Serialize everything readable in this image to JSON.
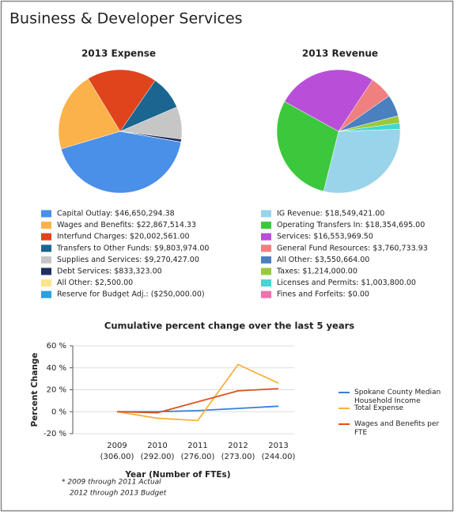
{
  "title": "Business & Developer Services",
  "chart_data": [
    {
      "type": "pie",
      "title": "2013 Expense",
      "categories": [
        "Capital Outlay: $46,650,294.38",
        "Wages and Benefits: $22,867,514.33",
        "Interfund Charges: $20,002,561.00",
        "Transfers to Other Funds: $9,803,974.00",
        "Supplies and Services: $9,270,427.00",
        "Debt Services: $833,323.00",
        "All Other: $2,500.00",
        "Reserve for Budget Adj.: ($250,000.00)"
      ],
      "values": [
        46650294.38,
        22867514.33,
        20002561,
        9803974,
        9270427,
        833323,
        2500,
        -250000
      ],
      "colors": [
        "#4a8fe8",
        "#fbb24a",
        "#e0441c",
        "#1a6690",
        "#c6c6c6",
        "#1f2f5f",
        "#ffe38a",
        "#2aa0e0"
      ]
    },
    {
      "type": "pie",
      "title": "2013 Revenue",
      "categories": [
        "IG Revenue: $18,549,421.00",
        "Operating Transfers In: $18,354,695.00",
        "Services: $16,553,969.50",
        "General Fund Resources: $3,760,733.93",
        "All Other: $3,550,664.00",
        "Taxes: $1,214,000.00",
        "Licenses and Permits: $1,003,800.00",
        "Fines and Forfeits: $0.00"
      ],
      "values": [
        18549421,
        18354695,
        16553969.5,
        3760733.93,
        3550664,
        1214000,
        1003800,
        0
      ],
      "colors": [
        "#9ad4ea",
        "#3cc83c",
        "#b94fd8",
        "#f08080",
        "#4a7fc0",
        "#9ac83c",
        "#40d8d0",
        "#f070b0"
      ]
    },
    {
      "type": "line",
      "title": "Cumulative percent change over the last 5 years",
      "y_label": "Percent Change",
      "x_label": "Year (Number of FTEs)",
      "categories": [
        "2009",
        "2010",
        "2011",
        "2012",
        "2013"
      ],
      "category_sublabels": [
        "(306.00)",
        "(292.00)",
        "(276.00)",
        "(273.00)",
        "(244.00)"
      ],
      "series": [
        {
          "name": "Spokane County Median Household Income",
          "color": "#3a7fd8",
          "values": [
            0,
            0,
            1,
            3,
            5
          ]
        },
        {
          "name": "Total Expense",
          "color": "#f8b040",
          "values": [
            0,
            -6,
            -8,
            43,
            26
          ]
        },
        {
          "name": "Wages and Benefits per FTE",
          "color": "#e0501c",
          "values": [
            0,
            -1,
            9,
            19,
            21
          ]
        }
      ],
      "ylim": [
        -20,
        60
      ],
      "yticks": [
        {
          "value": -20,
          "label": "-20 %"
        },
        {
          "value": 0,
          "label": "0 %"
        },
        {
          "value": 20,
          "label": "20 %"
        },
        {
          "value": 40,
          "label": "40 %"
        },
        {
          "value": 60,
          "label": "60 %"
        }
      ],
      "grid": true,
      "notes": [
        "* 2009 through 2011 Actual",
        "2012 through 2013 Budget"
      ]
    }
  ]
}
